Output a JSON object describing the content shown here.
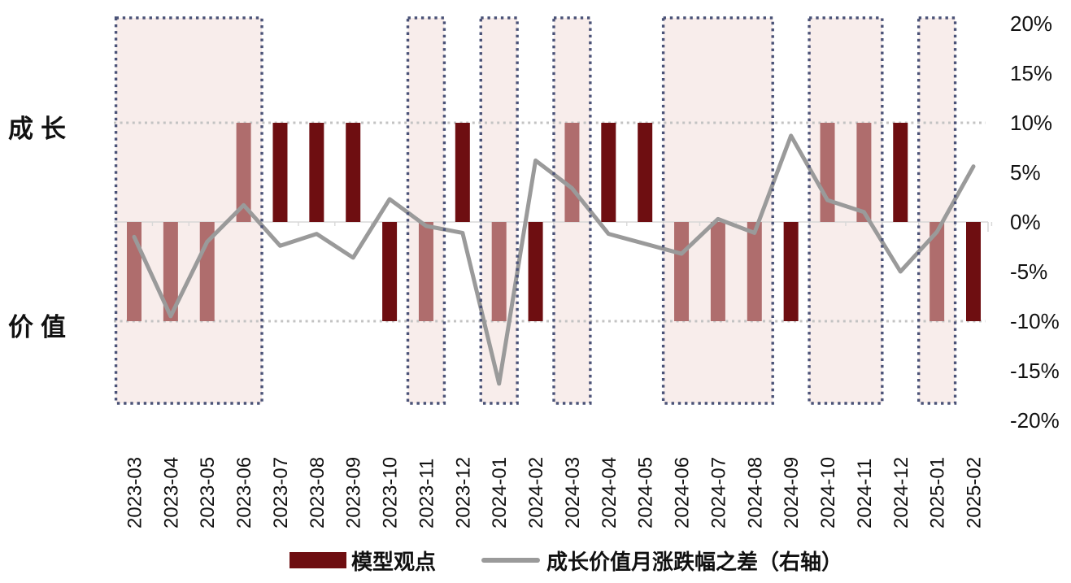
{
  "figure": {
    "left_axis": {
      "top_label": "成长",
      "bottom_label": "价值"
    },
    "legend": [
      {
        "type": "bar",
        "label": "模型观点"
      },
      {
        "type": "line",
        "label": "成长价值月涨跌幅之差（右轴）"
      }
    ]
  },
  "chart_data": {
    "type": "bar+line",
    "categories": [
      "2023-03",
      "2023-04",
      "2023-05",
      "2023-06",
      "2023-07",
      "2023-08",
      "2023-09",
      "2023-10",
      "2023-11",
      "2023-12",
      "2024-01",
      "2024-02",
      "2024-03",
      "2024-04",
      "2024-05",
      "2024-06",
      "2024-07",
      "2024-08",
      "2024-09",
      "2024-10",
      "2024-11",
      "2024-12",
      "2025-01",
      "2025-02"
    ],
    "left_axis_labels": {
      "growth": "成长",
      "value": "价值"
    },
    "series": [
      {
        "name": "模型观点",
        "type": "bar",
        "values": [
          -10,
          -10,
          -10,
          10,
          10,
          10,
          10,
          -10,
          -10,
          10,
          -10,
          -10,
          10,
          10,
          10,
          -10,
          -10,
          -10,
          -10,
          10,
          10,
          10,
          -10,
          -10
        ],
        "model_view": [
          "价值",
          "价值",
          "价值",
          "成长",
          "成长",
          "成长",
          "成长",
          "价值",
          "价值",
          "成长",
          "价值",
          "价值",
          "成长",
          "成长",
          "成长",
          "价值",
          "价值",
          "价值",
          "价值",
          "成长",
          "成长",
          "成长",
          "价值",
          "价值"
        ]
      },
      {
        "name": "成长价值月涨跌幅之差（右轴）",
        "type": "line",
        "axis": "right",
        "values": [
          -1.5,
          -9.5,
          -2.0,
          1.7,
          -2.4,
          -1.2,
          -3.6,
          2.3,
          -0.4,
          -1.1,
          -16.3,
          6.2,
          3.4,
          -1.2,
          -2.2,
          -3.2,
          0.3,
          -1.1,
          8.7,
          2.2,
          1.0,
          -5.0,
          -1.0,
          5.6
        ]
      }
    ],
    "highlight_regions": [
      [
        "2023-03",
        "2023-06"
      ],
      [
        "2023-11",
        "2023-11"
      ],
      [
        "2024-01",
        "2024-01"
      ],
      [
        "2024-03",
        "2024-03"
      ],
      [
        "2024-06",
        "2024-08"
      ],
      [
        "2024-10",
        "2024-11"
      ],
      [
        "2025-01",
        "2025-01"
      ]
    ],
    "right_axis": {
      "ticks": [
        "20%",
        "15%",
        "10%",
        "5%",
        "0%",
        "-5%",
        "-10%",
        "-15%",
        "-20%"
      ],
      "min": -20,
      "max": 20
    },
    "grid": {
      "dotted_levels": [
        10,
        -10
      ]
    },
    "colors": {
      "bar_dark": "#6e0e11",
      "bar_light": "#af6d6d",
      "region_fill": "#f8edeb",
      "region_border": "#4a5277",
      "line": "#9a9a9a",
      "grid_dotted": "#c3c3c3",
      "axis": "#d8d8d8"
    }
  }
}
